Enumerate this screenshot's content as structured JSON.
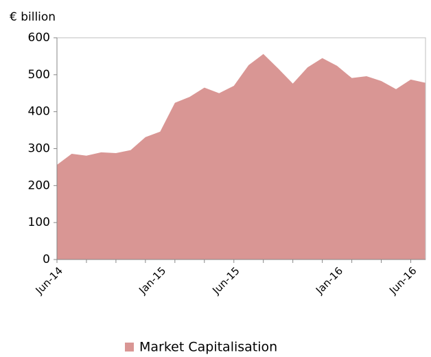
{
  "chart_data": {
    "type": "area",
    "y_label": "€ billion",
    "categories": [
      "Jun-14",
      null,
      null,
      null,
      null,
      null,
      null,
      "Jan-15",
      null,
      null,
      null,
      null,
      "Jun-15",
      null,
      null,
      null,
      null,
      null,
      null,
      "Jan-16",
      null,
      null,
      null,
      null,
      "Jun-16",
      null
    ],
    "series": [
      {
        "name": "Market Capitalisation",
        "color": "#d99694",
        "values": [
          256,
          286,
          281,
          290,
          288,
          296,
          331,
          346,
          424,
          440,
          465,
          450,
          470,
          526,
          556,
          517,
          476,
          520,
          545,
          524,
          491,
          496,
          483,
          461,
          487,
          478
        ]
      }
    ],
    "ylim": [
      0,
      600
    ],
    "yticks": [
      0,
      100,
      200,
      300,
      400,
      500,
      600
    ],
    "legend": "bottom"
  }
}
